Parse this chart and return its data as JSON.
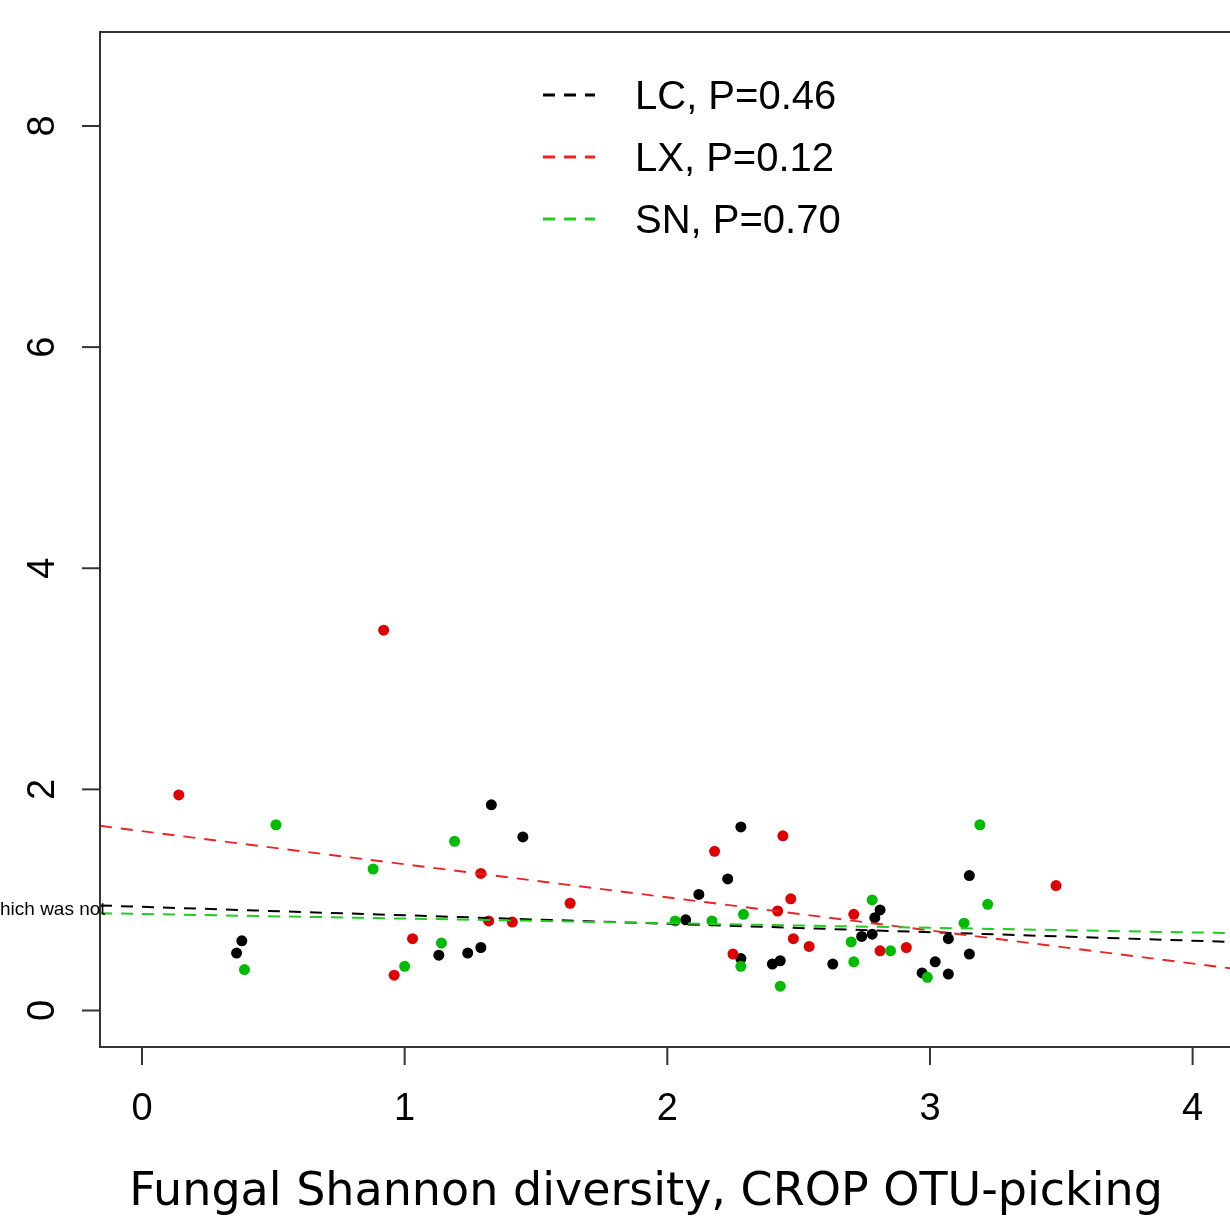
{
  "chart_data": {
    "type": "scatter",
    "xlabel": "Fungal Shannon diversity, CROP OTU-picking",
    "xlim": [
      -0.16,
      4.15
    ],
    "ylim": [
      -0.33,
      8.85
    ],
    "xticks": [
      0,
      1,
      2,
      3,
      4
    ],
    "yticks": [
      0,
      2,
      4,
      6,
      8
    ],
    "grid": false,
    "legend": "top",
    "marker": "circle",
    "annotations": [
      "hich was not"
    ],
    "series": [
      {
        "color": "#000000",
        "x": [
          0.36,
          0.38,
          1.13,
          1.24,
          1.29,
          1.33,
          1.45,
          2.07,
          2.12,
          2.23,
          2.28,
          2.28,
          2.4,
          2.43,
          2.63,
          2.74,
          2.78,
          2.79,
          2.81,
          2.97,
          3.02,
          3.07,
          3.07,
          3.15,
          3.15
        ],
        "values": [
          0.52,
          0.63,
          0.5,
          0.52,
          0.57,
          1.86,
          1.57,
          0.82,
          1.05,
          1.19,
          1.66,
          0.47,
          0.42,
          0.45,
          0.42,
          0.67,
          0.69,
          0.84,
          0.91,
          0.34,
          0.44,
          0.65,
          0.33,
          1.22,
          0.51
        ]
      },
      {
        "color": "#dd0000",
        "x": [
          0.14,
          0.92,
          0.96,
          1.03,
          1.29,
          1.32,
          1.41,
          1.63,
          2.18,
          2.25,
          2.42,
          2.44,
          2.47,
          2.48,
          2.54,
          2.71,
          2.81,
          2.91,
          3.48
        ],
        "values": [
          1.95,
          3.44,
          0.32,
          0.65,
          1.24,
          0.81,
          0.8,
          0.97,
          1.44,
          0.51,
          0.9,
          1.58,
          1.01,
          0.65,
          0.58,
          0.87,
          0.54,
          0.57,
          1.13
        ]
      },
      {
        "color": "#00bb00",
        "x": [
          0.39,
          0.51,
          0.88,
          1.0,
          1.14,
          1.19,
          2.03,
          2.17,
          2.28,
          2.29,
          2.43,
          2.7,
          2.71,
          2.78,
          2.85,
          2.99,
          3.13,
          3.19,
          3.22
        ],
        "values": [
          0.37,
          1.68,
          1.28,
          0.4,
          0.61,
          1.53,
          0.81,
          0.81,
          0.4,
          0.87,
          0.22,
          0.62,
          0.44,
          1.0,
          0.54,
          0.3,
          0.79,
          1.68,
          0.96
        ]
      },
      {
        "type": "line",
        "name": "LC, P=0.46",
        "color": "#000000",
        "line_style": "dashed",
        "marker": "none",
        "x": [
          -0.16,
          4.15
        ],
        "values": [
          0.95,
          0.62
        ]
      },
      {
        "type": "line",
        "name": "LX, P=0.12",
        "color": "#ee2222",
        "line_style": "dashed",
        "marker": "none",
        "x": [
          -0.16,
          4.15
        ],
        "values": [
          1.67,
          0.38
        ]
      },
      {
        "type": "line",
        "name": "SN, P=0.70",
        "color": "#22cc22",
        "line_style": "dashed",
        "marker": "none",
        "x": [
          -0.16,
          4.15
        ],
        "values": [
          0.88,
          0.7
        ]
      }
    ]
  }
}
